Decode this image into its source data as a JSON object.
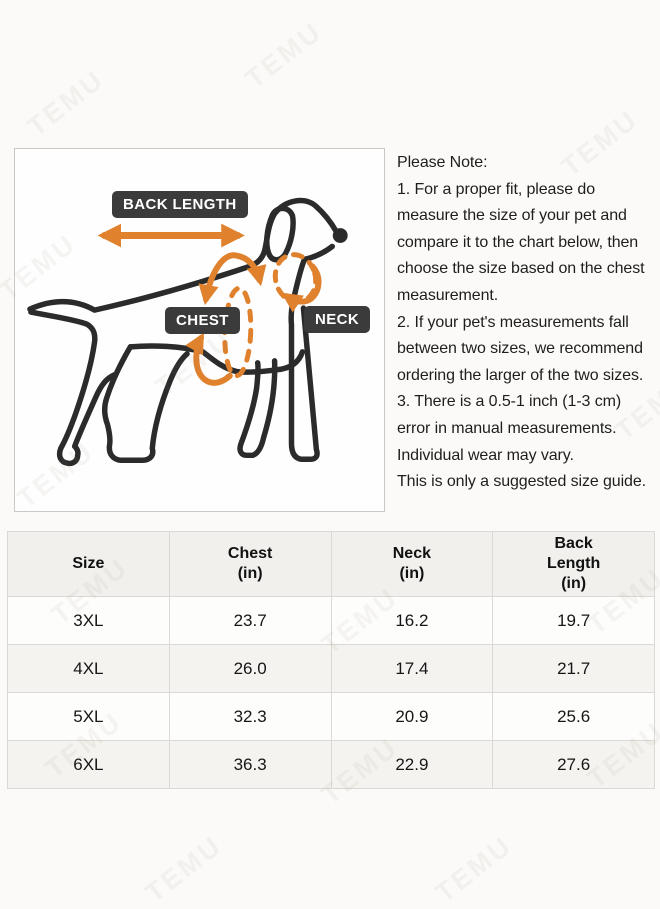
{
  "watermark": {
    "text": "TEMU"
  },
  "diagram": {
    "back_length_label": "BACK LENGTH",
    "chest_label": "CHEST",
    "neck_label": "NECK"
  },
  "notes": {
    "title": "Please Note:",
    "items": [
      "1. For a proper fit, please do measure the size of your pet and compare it to the chart below, then choose the size based on the chest measurement.",
      "2. If your pet's measurements fall between two sizes, we recommend ordering the larger of the two sizes.",
      "3. There is a 0.5-1 inch (1-3 cm) error in manual measurements. Individual wear may vary.",
      "This is only a suggested size guide."
    ]
  },
  "table": {
    "headers": [
      "Size",
      "Chest\n(in)",
      "Neck\n(in)",
      "Back\nLength\n(in)"
    ],
    "rows": [
      [
        "3XL",
        "23.7",
        "16.2",
        "19.7"
      ],
      [
        "4XL",
        "26.0",
        "17.4",
        "21.7"
      ],
      [
        "5XL",
        "32.3",
        "20.9",
        "25.6"
      ],
      [
        "6XL",
        "36.3",
        "22.9",
        "27.6"
      ]
    ]
  },
  "colors": {
    "accent_orange": "#E0812E",
    "label_background": "#3B3B3B",
    "dog_line": "#2B2B2B"
  }
}
